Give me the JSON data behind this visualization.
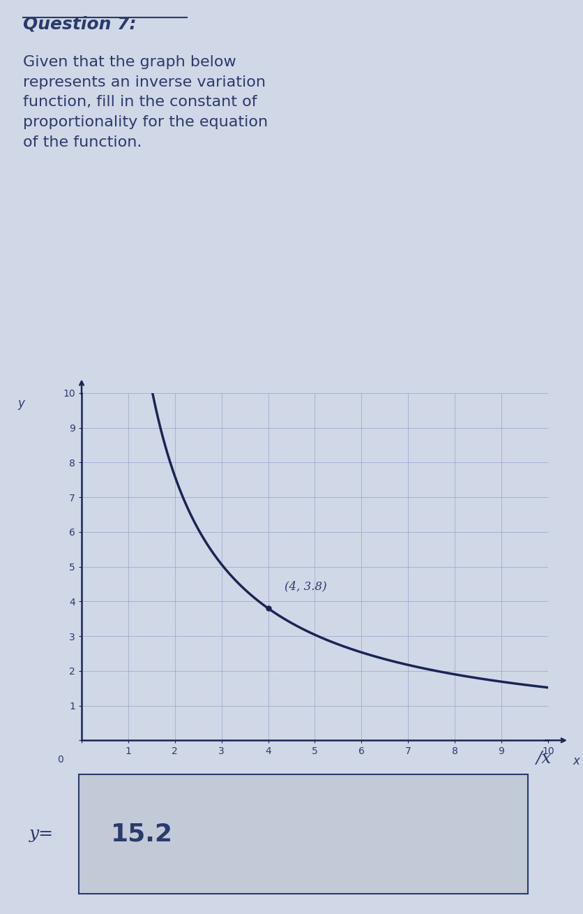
{
  "title_line1": "Question 7:",
  "title_body": "Given that the graph below\nrepresents an inverse variation\nfunction, fill in the constant of\nproportionality for the equation\nof the function.",
  "bg_color": "#d0d8e8",
  "text_color": "#2c3a6b",
  "curve_color": "#1a2555",
  "grid_color": "#9aaacb",
  "axis_color": "#1a2555",
  "point_label": "(4, 3.8)",
  "point_x": 4,
  "point_y": 3.8,
  "k": 15.2,
  "xlim": [
    0,
    10
  ],
  "ylim": [
    0,
    10
  ],
  "xlabel": "x",
  "ylabel": "y",
  "answer_text": "15.2",
  "equation_prefix": "y=",
  "equation_suffix": "/x",
  "box_facecolor": "#c2cad8",
  "box_edgecolor": "#2c3a6b",
  "answer_fontsize": 24,
  "title_fontsize_q": 18,
  "title_fontsize_body": 16,
  "tick_fontsize": 10,
  "axis_label_fontsize": 12
}
